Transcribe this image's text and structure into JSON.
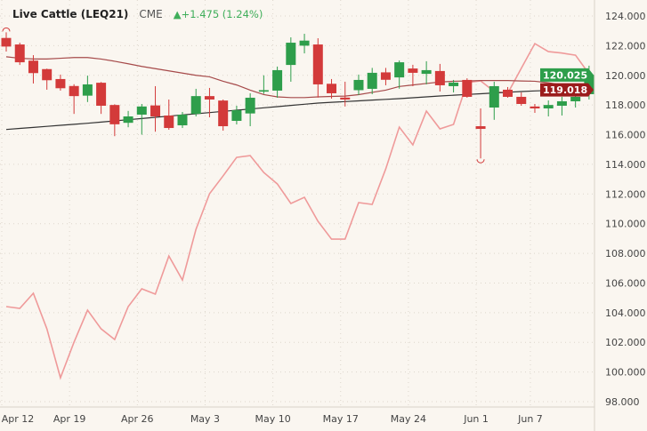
{
  "header": {
    "title": "Live Cattle (LEQ21)",
    "exchange": "CME",
    "change": "▲+1.475 (1.24%)"
  },
  "colors": {
    "up": "#2e9e4b",
    "down": "#d33a3a",
    "ma_short": "#a64a4a",
    "ma_long": "#333333",
    "compare": "#ef9a9a",
    "background": "#faf6f0",
    "last_badge": "#2e9e4b",
    "ma_badge": "#9b1c1c"
  },
  "chart_data": {
    "type": "candlestick",
    "ylim": [
      98,
      124
    ],
    "yticks": [
      "124.000",
      "122.000",
      "120.000",
      "118.000",
      "116.000",
      "114.000",
      "112.000",
      "110.000",
      "108.000",
      "106.000",
      "104.000",
      "102.000",
      "100.000",
      "98.000"
    ],
    "xticks": [
      {
        "label": "Apr 12",
        "index": 0
      },
      {
        "label": "Apr 19",
        "index": 5
      },
      {
        "label": "Apr 26",
        "index": 10
      },
      {
        "label": "May 3",
        "index": 15
      },
      {
        "label": "May 10",
        "index": 20
      },
      {
        "label": "May 17",
        "index": 25
      },
      {
        "label": "May 24",
        "index": 30
      },
      {
        "label": "Jun 1",
        "index": 35
      },
      {
        "label": "Jun 7",
        "index": 39
      }
    ],
    "grid": true,
    "ohlc": [
      [
        122.52,
        122.9,
        121.6,
        121.94
      ],
      [
        122.08,
        122.2,
        120.7,
        120.88
      ],
      [
        120.99,
        121.36,
        119.45,
        120.15
      ],
      [
        120.42,
        120.45,
        119.03,
        119.67
      ],
      [
        119.75,
        120.05,
        118.97,
        119.13
      ],
      [
        119.28,
        119.4,
        117.4,
        118.6
      ],
      [
        118.63,
        119.98,
        118.2,
        119.39
      ],
      [
        119.5,
        119.55,
        117.4,
        117.95
      ],
      [
        118.0,
        118.05,
        115.9,
        116.7
      ],
      [
        116.8,
        117.6,
        116.5,
        117.23
      ],
      [
        117.35,
        118.07,
        116.0,
        117.9
      ],
      [
        117.97,
        119.27,
        116.2,
        117.23
      ],
      [
        117.29,
        118.37,
        116.33,
        116.45
      ],
      [
        116.63,
        117.53,
        116.45,
        117.35
      ],
      [
        117.4,
        119.09,
        117.23,
        118.6
      ],
      [
        118.6,
        119.15,
        117.17,
        118.37
      ],
      [
        118.3,
        118.37,
        116.27,
        116.57
      ],
      [
        116.93,
        117.95,
        116.69,
        117.65
      ],
      [
        117.43,
        118.79,
        116.57,
        118.49
      ],
      [
        118.9,
        120.0,
        118.75,
        119.0
      ],
      [
        118.97,
        120.59,
        118.49,
        120.35
      ],
      [
        120.7,
        122.56,
        119.57,
        122.2
      ],
      [
        122.0,
        122.8,
        121.48,
        122.34
      ],
      [
        122.08,
        122.5,
        118.5,
        119.39
      ],
      [
        119.43,
        119.75,
        118.43,
        118.79
      ],
      [
        118.5,
        119.57,
        117.9,
        118.37
      ],
      [
        119.0,
        120.05,
        118.67,
        119.69
      ],
      [
        119.09,
        120.5,
        118.73,
        120.17
      ],
      [
        120.2,
        120.5,
        119.33,
        119.7
      ],
      [
        119.86,
        121.0,
        119.1,
        120.88
      ],
      [
        120.46,
        120.71,
        119.27,
        120.17
      ],
      [
        120.1,
        120.95,
        119.39,
        120.35
      ],
      [
        120.29,
        120.77,
        118.91,
        119.33
      ],
      [
        119.27,
        119.69,
        118.85,
        119.51
      ],
      [
        119.69,
        119.8,
        118.49,
        118.55
      ],
      [
        116.57,
        117.77,
        114.4,
        116.39
      ],
      [
        117.83,
        119.57,
        117.0,
        119.27
      ],
      [
        119.03,
        119.21,
        118.49,
        118.55
      ],
      [
        118.55,
        118.85,
        117.95,
        118.07
      ],
      [
        117.9,
        118.07,
        117.47,
        117.77
      ],
      [
        117.77,
        118.31,
        117.23,
        118.0
      ],
      [
        117.95,
        118.55,
        117.29,
        118.25
      ],
      [
        118.25,
        118.67,
        117.83,
        118.55
      ],
      [
        118.73,
        120.65,
        118.37,
        120.03
      ]
    ],
    "ma_short": [
      121.25,
      121.15,
      121.1,
      121.1,
      121.15,
      121.2,
      121.2,
      121.1,
      120.95,
      120.78,
      120.6,
      120.45,
      120.3,
      120.15,
      120.0,
      119.9,
      119.6,
      119.35,
      119.0,
      118.7,
      118.55,
      118.5,
      118.5,
      118.55,
      118.58,
      118.6,
      118.7,
      118.85,
      119.0,
      119.25,
      119.35,
      119.45,
      119.55,
      119.6,
      119.62,
      119.65,
      119.65,
      119.65,
      119.62,
      119.6,
      119.5,
      119.35,
      119.2,
      119.02
    ],
    "ma_long": [
      116.35,
      116.42,
      116.49,
      116.56,
      116.63,
      116.7,
      116.77,
      116.85,
      116.93,
      117.01,
      117.09,
      117.17,
      117.25,
      117.33,
      117.41,
      117.49,
      117.57,
      117.65,
      117.73,
      117.81,
      117.89,
      117.97,
      118.05,
      118.13,
      118.18,
      118.23,
      118.28,
      118.33,
      118.38,
      118.43,
      118.49,
      118.55,
      118.61,
      118.66,
      118.71,
      118.76,
      118.81,
      118.86,
      118.91,
      118.95,
      118.98,
      119.0,
      119.01,
      119.02
    ],
    "compare": [
      104.41,
      104.29,
      105.31,
      102.91,
      99.61,
      102.01,
      104.17,
      102.91,
      102.19,
      104.41,
      105.61,
      105.25,
      107.82,
      106.2,
      109.62,
      112.02,
      113.22,
      114.47,
      114.59,
      113.45,
      112.68,
      111.36,
      111.78,
      110.16,
      108.96,
      108.96,
      111.42,
      111.3,
      113.69,
      116.51,
      115.31,
      117.59,
      116.39,
      116.69,
      119.51,
      119.63,
      118.91,
      118.79,
      120.47,
      122.14,
      121.6,
      121.5,
      121.36,
      120.1
    ],
    "last_price": "120.025",
    "ma_price": "119.018"
  }
}
